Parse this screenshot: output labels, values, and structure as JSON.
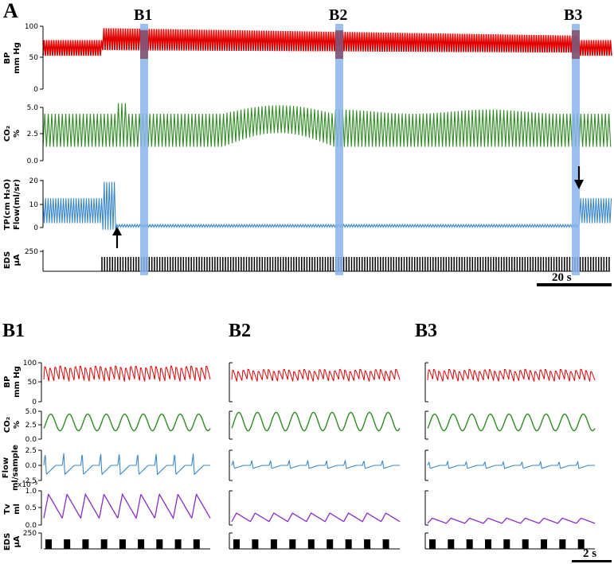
{
  "figure": {
    "panel_A": "A",
    "panel_B1": "B1",
    "panel_B2": "B2",
    "panel_B3": "B3",
    "marker_B1": "B1",
    "marker_B2": "B2",
    "marker_B3": "B3",
    "scalebar_A": "20 s",
    "scalebar_B": "2 s",
    "tv_exponent": "x10⁻³"
  },
  "colors": {
    "bp": "#e00000",
    "co2": "#2e8b22",
    "flow": "#3a88c8",
    "tv": "#8a2bc8",
    "highlight": "#8ab4ec",
    "eds": "#000000"
  },
  "chart_data": [
    {
      "type": "line",
      "panel": "A",
      "x_units": "s",
      "markers": [
        "B1",
        "B2",
        "B3"
      ],
      "arrows": [
        "EDS on (flow drops)",
        "EDS off (flow resumes)"
      ],
      "series": [
        {
          "key": "bp",
          "ylabel_line1": "BP",
          "ylabel_line2": "mm Hg",
          "yticks": [
            "100",
            "50",
            "0"
          ],
          "ylim": [
            0,
            100
          ],
          "baseline_range": [
            50,
            75
          ],
          "eds_range": [
            62,
            95
          ]
        },
        {
          "key": "co2",
          "ylabel_line1": "CO₂",
          "ylabel_line2": "%",
          "yticks": [
            "5.0",
            "2.5",
            "0.0"
          ],
          "ylim": [
            0,
            5
          ],
          "baseline_range": [
            1.5,
            4.5
          ],
          "peak": 5.5
        },
        {
          "key": "flow",
          "ylabel_line1": "TP(cm H₂O)",
          "ylabel_line2": "Flow(ml/sr)",
          "yticks": [
            "20",
            "10",
            "0"
          ],
          "ylim": [
            0,
            22
          ],
          "baseline_range": [
            2,
            14
          ],
          "eds_value": 1
        },
        {
          "key": "eds",
          "ylabel_line1": "EDS",
          "ylabel_line2": "μA",
          "yticks": [
            "250"
          ],
          "ylim": [
            0,
            250
          ],
          "pulse_amplitude": 250
        }
      ]
    },
    {
      "type": "line",
      "panel": "B",
      "x_units": "s",
      "cycles_per_window": 9,
      "series": [
        {
          "key": "bp",
          "ylabel_line1": "BP",
          "ylabel_line2": "mm Hg",
          "yticks": [
            "100",
            "50",
            "0"
          ],
          "ylim": [
            0,
            100
          ],
          "ranges": {
            "B1": [
              55,
              95
            ],
            "B2": [
              55,
              85
            ],
            "B3": [
              55,
              85
            ]
          }
        },
        {
          "key": "co2",
          "ylabel_line1": "CO₂",
          "ylabel_line2": "%",
          "yticks": [
            "5.0",
            "2.5",
            "0.0"
          ],
          "ylim": [
            0,
            5
          ],
          "ranges": {
            "B1": [
              1.5,
              4.5
            ],
            "B2": [
              1.5,
              4.8
            ],
            "B3": [
              1.5,
              4.5
            ]
          }
        },
        {
          "key": "flow",
          "ylabel_line1": "Flow",
          "ylabel_line2": "ml/sample",
          "yticks": [
            "2.5",
            "0.0",
            "-2.5"
          ],
          "ylim": [
            -2.5,
            2.5
          ],
          "ranges": {
            "B1": [
              -1.5,
              2
            ],
            "B2": [
              -0.5,
              0.8
            ],
            "B3": [
              -0.5,
              0.6
            ]
          }
        },
        {
          "key": "tv",
          "ylabel_line1": "Tv",
          "ylabel_line2": "ml",
          "yticks": [
            "1.0",
            "0.5",
            "0.0"
          ],
          "ylim": [
            0,
            1
          ],
          "ranges": {
            "B1": [
              0.2,
              0.9
            ],
            "B2": [
              0.1,
              0.35
            ],
            "B3": [
              0.05,
              0.2
            ]
          }
        },
        {
          "key": "eds",
          "ylabel_line1": "EDS",
          "ylabel_line2": "μA",
          "yticks": [
            "250"
          ],
          "ylim": [
            0,
            250
          ]
        }
      ]
    }
  ]
}
